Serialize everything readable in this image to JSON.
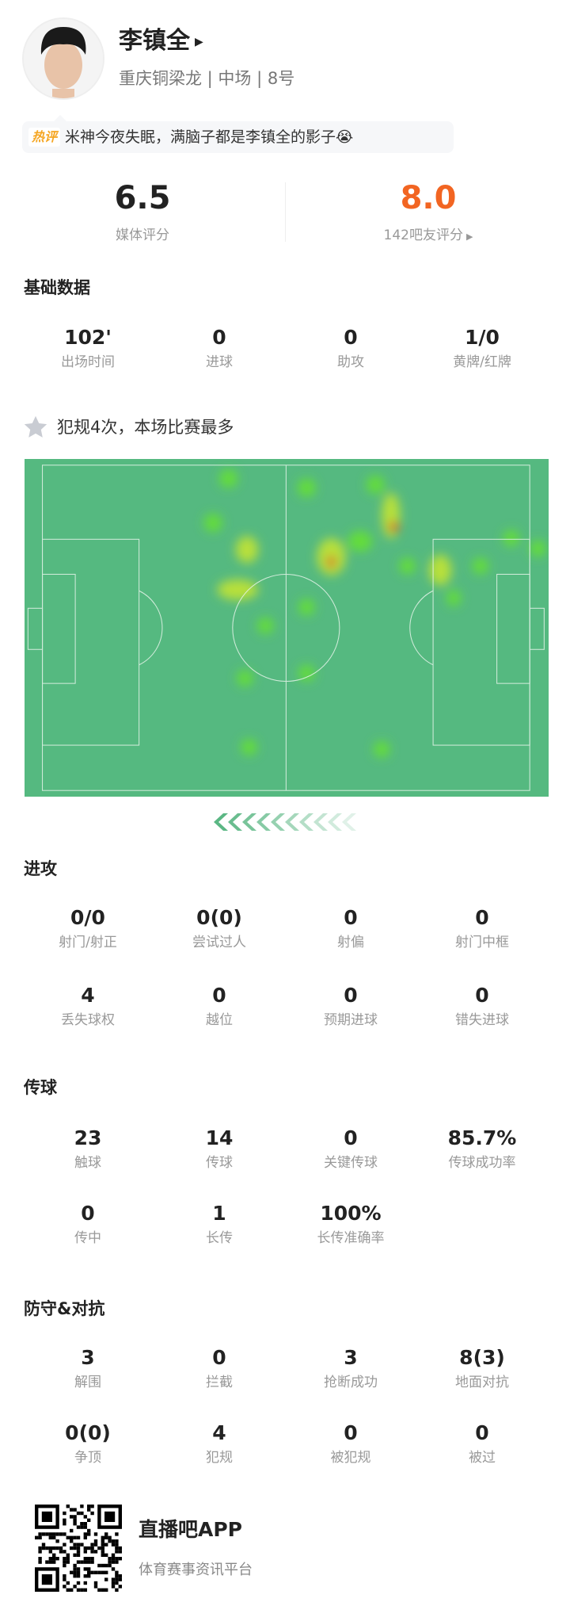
{
  "player": {
    "name": "李镇全",
    "subtitle": "重庆铜梁龙 | 中场 | 8号"
  },
  "hot_comment": {
    "tag": "热评",
    "text": "米神今夜失眠，满脑子都是李镇全的影子😭"
  },
  "ratings": {
    "media": {
      "value": "6.5",
      "label": "媒体评分",
      "color": "#222222"
    },
    "fans": {
      "value": "8.0",
      "label": "142吧友评分",
      "color": "#f26522"
    }
  },
  "basic": {
    "title": "基础数据",
    "stats": [
      {
        "v": "102'",
        "l": "出场时间"
      },
      {
        "v": "0",
        "l": "进球"
      },
      {
        "v": "0",
        "l": "助攻"
      },
      {
        "v": "1/0",
        "l": "黄牌/红牌"
      }
    ]
  },
  "highlight": {
    "icon": "star-icon",
    "text": "犯规4次，本场比赛最多"
  },
  "heatmap": {
    "pitch_color": "#55b980"
  },
  "attack": {
    "title": "进攻",
    "rows": [
      [
        {
          "v": "0/0",
          "l": "射门/射正"
        },
        {
          "v": "0(0)",
          "l": "尝试过人"
        },
        {
          "v": "0",
          "l": "射偏"
        },
        {
          "v": "0",
          "l": "射门中框"
        }
      ],
      [
        {
          "v": "4",
          "l": "丢失球权"
        },
        {
          "v": "0",
          "l": "越位"
        },
        {
          "v": "0",
          "l": "预期进球"
        },
        {
          "v": "0",
          "l": "错失进球"
        }
      ]
    ]
  },
  "passing": {
    "title": "传球",
    "rows": [
      [
        {
          "v": "23",
          "l": "触球"
        },
        {
          "v": "14",
          "l": "传球"
        },
        {
          "v": "0",
          "l": "关键传球"
        },
        {
          "v": "85.7%",
          "l": "传球成功率"
        }
      ],
      [
        {
          "v": "0",
          "l": "传中"
        },
        {
          "v": "1",
          "l": "长传"
        },
        {
          "v": "100%",
          "l": "长传准确率"
        }
      ]
    ]
  },
  "defense": {
    "title": "防守&对抗",
    "rows": [
      [
        {
          "v": "3",
          "l": "解围"
        },
        {
          "v": "0",
          "l": "拦截"
        },
        {
          "v": "3",
          "l": "抢断成功"
        },
        {
          "v": "8(3)",
          "l": "地面对抗"
        }
      ],
      [
        {
          "v": "0(0)",
          "l": "争顶"
        },
        {
          "v": "4",
          "l": "犯规"
        },
        {
          "v": "0",
          "l": "被犯规"
        },
        {
          "v": "0",
          "l": "被过"
        }
      ]
    ]
  },
  "footer": {
    "app_name": "直播吧APP",
    "slogan": "体育赛事资讯平台"
  }
}
